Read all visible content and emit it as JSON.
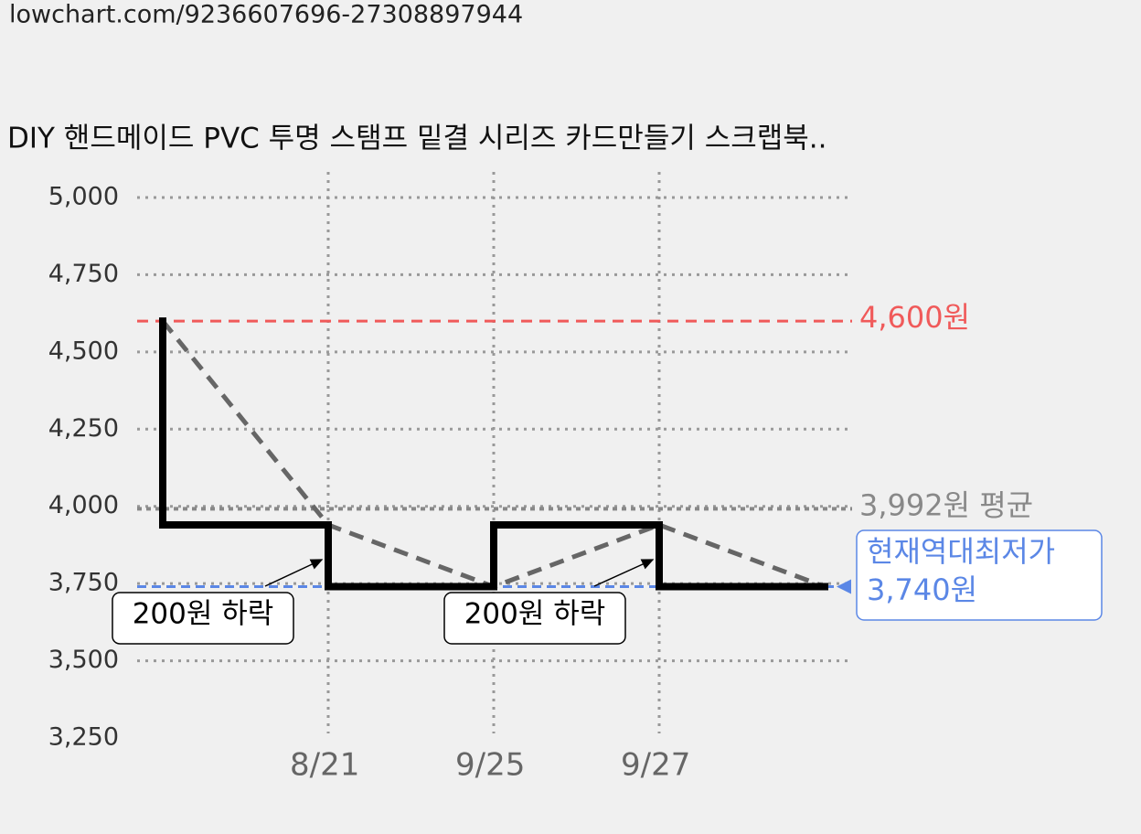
{
  "url": "lowchart.com/9236607696-27308897944",
  "chart_data": {
    "type": "step",
    "title": "DIY 핸드메이드 PVC 투명 스탬프 밑결 시리즈 카드만들기 스크랩북..",
    "categories": [
      null,
      "8/21",
      "9/25",
      "9/27",
      null
    ],
    "series": [
      {
        "color": "#000000",
        "trend_color": "#666666",
        "values": [
          4600,
          3940,
          3740,
          3940,
          3740
        ]
      }
    ],
    "ylim": [
      3250,
      5000
    ],
    "yticks": [
      {
        "value": 3250,
        "label": "3,250"
      },
      {
        "value": 3500,
        "label": "3,500"
      },
      {
        "value": 3750,
        "label": "3,750"
      },
      {
        "value": 4000,
        "label": "4,000"
      },
      {
        "value": 4250,
        "label": "4,250"
      },
      {
        "value": 4500,
        "label": "4,500"
      },
      {
        "value": 4750,
        "label": "4,750"
      },
      {
        "value": 5000,
        "label": "5,000"
      }
    ],
    "grid": true,
    "reference_lines": [
      {
        "value": 4600,
        "label": "4,600원",
        "color": "#f05a5a"
      },
      {
        "value": 3992,
        "label": "3,992원 평균",
        "color": "#888888"
      },
      {
        "value": 3740,
        "label_lines": [
          "현재역대최저가",
          "3,740원"
        ],
        "color": "#5b87e6"
      }
    ],
    "annotations": [
      "200원 하락",
      "200원 하락"
    ]
  }
}
